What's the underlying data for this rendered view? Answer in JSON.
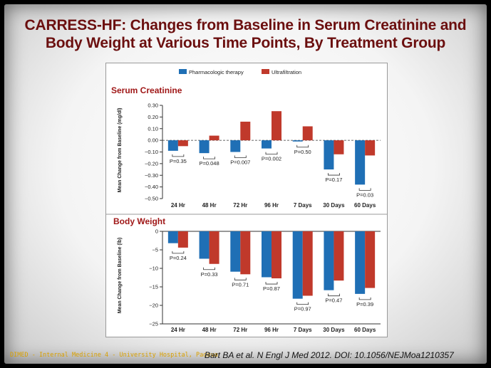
{
  "title": {
    "line1": "CARRESS-HF: Changes from Baseline in Serum Creatinine and",
    "line2": "Body Weight at Various Time Points, By Treatment Group"
  },
  "legend": [
    "Pharmacologic therapy",
    "Ultrafiltration"
  ],
  "colors": {
    "pharmacologic": "#1f6fb5",
    "ultrafiltration": "#c0392b",
    "title": "#6b0f0f"
  },
  "footer": {
    "left": "DIMED - Internal Medicine 4 - University Hospital, Padova",
    "right": "Bart BA et al. N Engl J Med 2012. DOI: 10.1056/NEJMoa1210357"
  },
  "chart_data": [
    {
      "type": "bar",
      "title": "Serum Creatinine",
      "ylabel": "Mean Change from Baseline (mg/dl)",
      "categories": [
        "24 Hr",
        "48 Hr",
        "72 Hr",
        "96 Hr",
        "7 Days",
        "30 Days",
        "60 Days"
      ],
      "ylim": [
        -0.5,
        0.3
      ],
      "yticks": [
        0.3,
        0.2,
        0.1,
        0.0,
        -0.1,
        -0.2,
        -0.3,
        -0.4,
        -0.5
      ],
      "ytick_labels": [
        "0.30",
        "0.20",
        "0.10",
        "0.00",
        "−0.10",
        "−0.20",
        "−0.30",
        "−0.40",
        "−0.50"
      ],
      "series": [
        {
          "name": "Pharmacologic therapy",
          "values": [
            -0.09,
            -0.11,
            -0.1,
            -0.07,
            -0.01,
            -0.25,
            -0.38
          ]
        },
        {
          "name": "Ultrafiltration",
          "values": [
            -0.05,
            0.04,
            0.16,
            0.25,
            0.12,
            -0.12,
            -0.13
          ]
        }
      ],
      "p_values": [
        "P=0.35",
        "P=0.048",
        "P=0.007",
        "P=0.002",
        "P=0.50",
        "P=0.17",
        "P=0.03"
      ]
    },
    {
      "type": "bar",
      "title": "Body Weight",
      "ylabel": "Mean Change from Baseline (lb)",
      "categories": [
        "24 Hr",
        "48 Hr",
        "72 Hr",
        "96 Hr",
        "7 Days",
        "30 Days",
        "60 Days"
      ],
      "ylim": [
        -25,
        0
      ],
      "yticks": [
        0,
        -5,
        -10,
        -15,
        -20,
        -25
      ],
      "ytick_labels": [
        "0",
        "−5",
        "−10",
        "−15",
        "−20",
        "−25"
      ],
      "series": [
        {
          "name": "Pharmacologic therapy",
          "values": [
            -3.2,
            -7.4,
            -10.9,
            -12.4,
            -18.2,
            -15.9,
            -16.9
          ]
        },
        {
          "name": "Ultrafiltration",
          "values": [
            -4.4,
            -8.8,
            -11.6,
            -12.7,
            -17.4,
            -13.3,
            -15.3
          ]
        }
      ],
      "p_values": [
        "P=0.24",
        "P=0.33",
        "P=0.71",
        "P=0.87",
        "P=0.97",
        "P=0.47",
        "P=0.39"
      ]
    }
  ]
}
